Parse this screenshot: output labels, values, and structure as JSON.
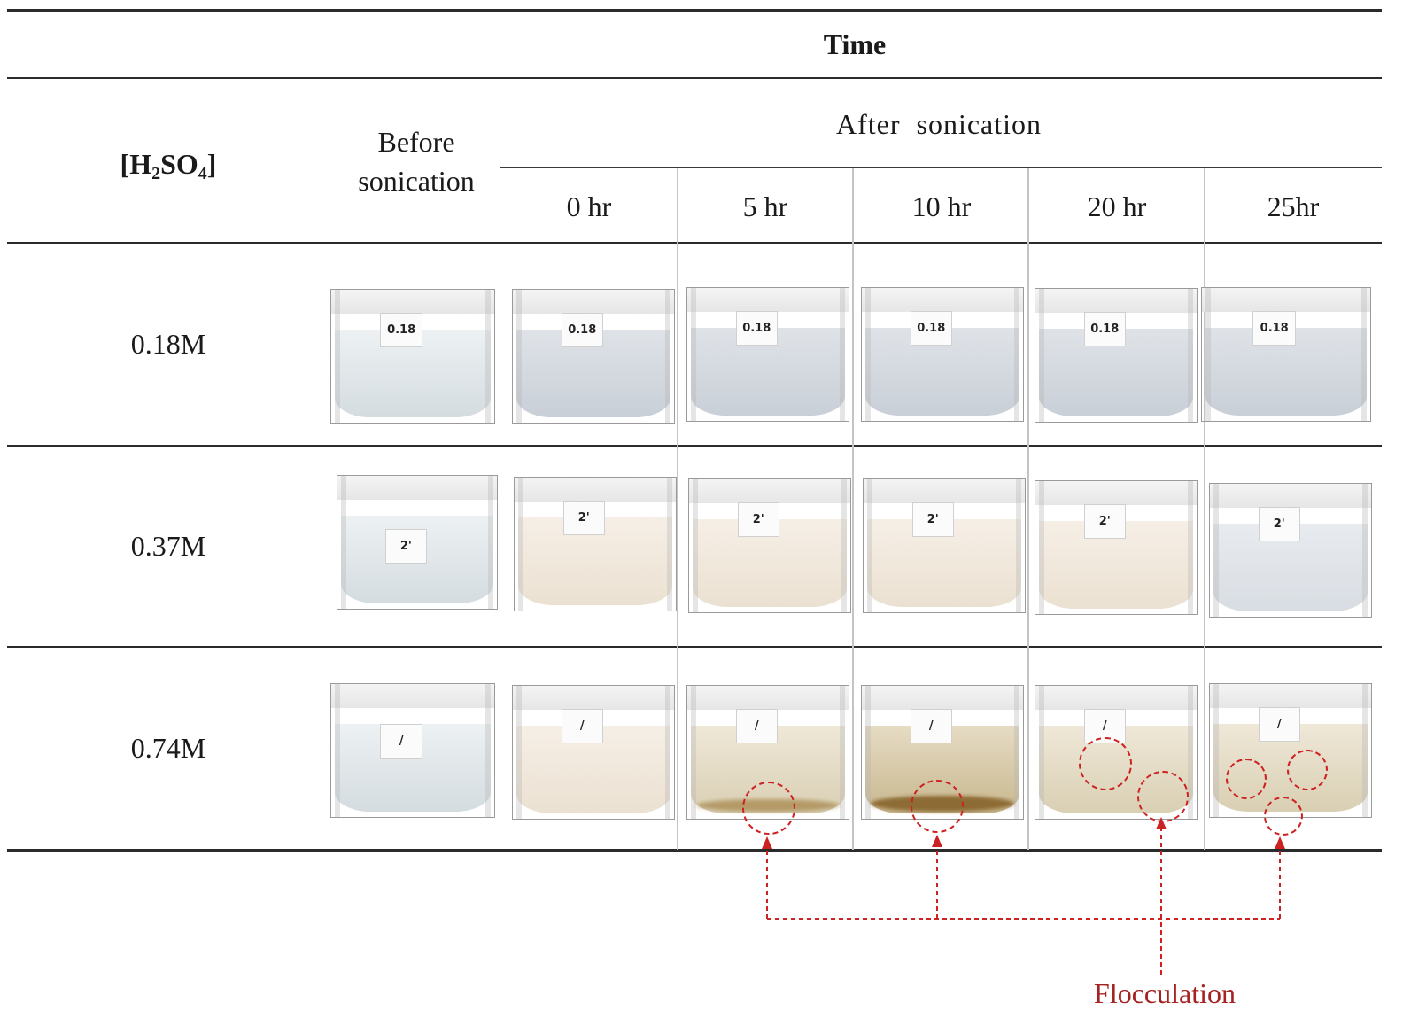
{
  "header": {
    "time": "Time",
    "acid_label_main": "[H",
    "acid_label_sub1": "2",
    "acid_label_mid": "SO",
    "acid_label_sub2": "4",
    "acid_label_end": "]",
    "before_line1": "Before",
    "before_line2": "sonication",
    "after": "After  sonication",
    "time_points": [
      "0 hr",
      "5 hr",
      "10 hr",
      "20 hr",
      "25hr"
    ]
  },
  "rows": [
    {
      "concentration": "0.18M",
      "label_text": "0.18",
      "before_label": "0.18"
    },
    {
      "concentration": "0.37M",
      "label_text": "2'",
      "before_label": "2'"
    },
    {
      "concentration": "0.74M",
      "label_text": "/",
      "before_label": "/"
    }
  ],
  "annotation": {
    "text": "Flocculation",
    "color": "#cc2222"
  }
}
